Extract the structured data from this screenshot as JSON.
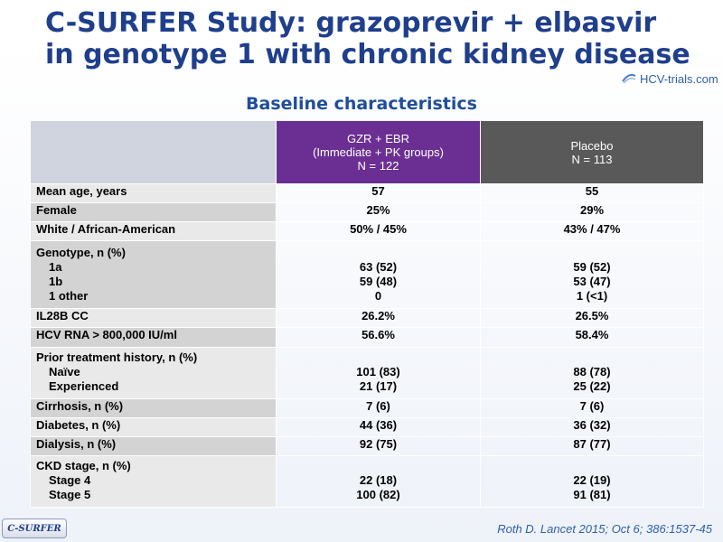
{
  "header": {
    "title_line1": "C-SURFER Study: grazoprevir + elbasvir",
    "title_line2": "in genotype 1 with chronic kidney disease",
    "logo_text": "HCV-trials.com",
    "subtitle": "Baseline characteristics"
  },
  "table": {
    "col_grz": {
      "line1": "GZR + EBR",
      "line2": "(Immediate + PK groups)",
      "line3": "N = 122"
    },
    "col_placebo": {
      "line1": "Placebo",
      "line2": "N = 113"
    },
    "rows": [
      {
        "label": "Mean age, years",
        "grz": "57",
        "placebo": "55"
      },
      {
        "label": "Female",
        "grz": "25%",
        "placebo": "29%"
      },
      {
        "label": "White / African-American",
        "grz": "50% / 45%",
        "placebo": "43% / 47%"
      },
      {
        "label": "Genotype, n (%)",
        "subs": [
          "1a",
          "1b",
          "1 other"
        ],
        "grz_subs": [
          "63 (52)",
          "59 (48)",
          "0"
        ],
        "placebo_subs": [
          "59 (52)",
          "53 (47)",
          "1 (<1)"
        ]
      },
      {
        "label": "IL28B CC",
        "grz": "26.2%",
        "placebo": "26.5%"
      },
      {
        "label": "HCV RNA > 800,000 IU/ml",
        "grz": "56.6%",
        "placebo": "58.4%"
      },
      {
        "label": "Prior treatment history, n (%)",
        "subs": [
          "Naïve",
          "Experienced"
        ],
        "grz_subs": [
          "101 (83)",
          "21 (17)"
        ],
        "placebo_subs": [
          "88 (78)",
          "25 (22)"
        ]
      },
      {
        "label": "Cirrhosis, n (%)",
        "grz": "7 (6)",
        "placebo": "7 (6)"
      },
      {
        "label": "Diabetes, n (%)",
        "grz": "44 (36)",
        "placebo": "36 (32)"
      },
      {
        "label": "Dialysis, n (%)",
        "grz": "92 (75)",
        "placebo": "87 (77)"
      },
      {
        "label": "CKD stage, n (%)",
        "subs": [
          "Stage 4",
          "Stage 5"
        ],
        "grz_subs": [
          "22 (18)",
          "100 (82)"
        ],
        "placebo_subs": [
          "22 (19)",
          "91 (81)"
        ]
      }
    ]
  },
  "footer": {
    "badge": "C-SURFER",
    "citation": "Roth D. Lancet 2015; Oct 6; 386:1537-45"
  }
}
